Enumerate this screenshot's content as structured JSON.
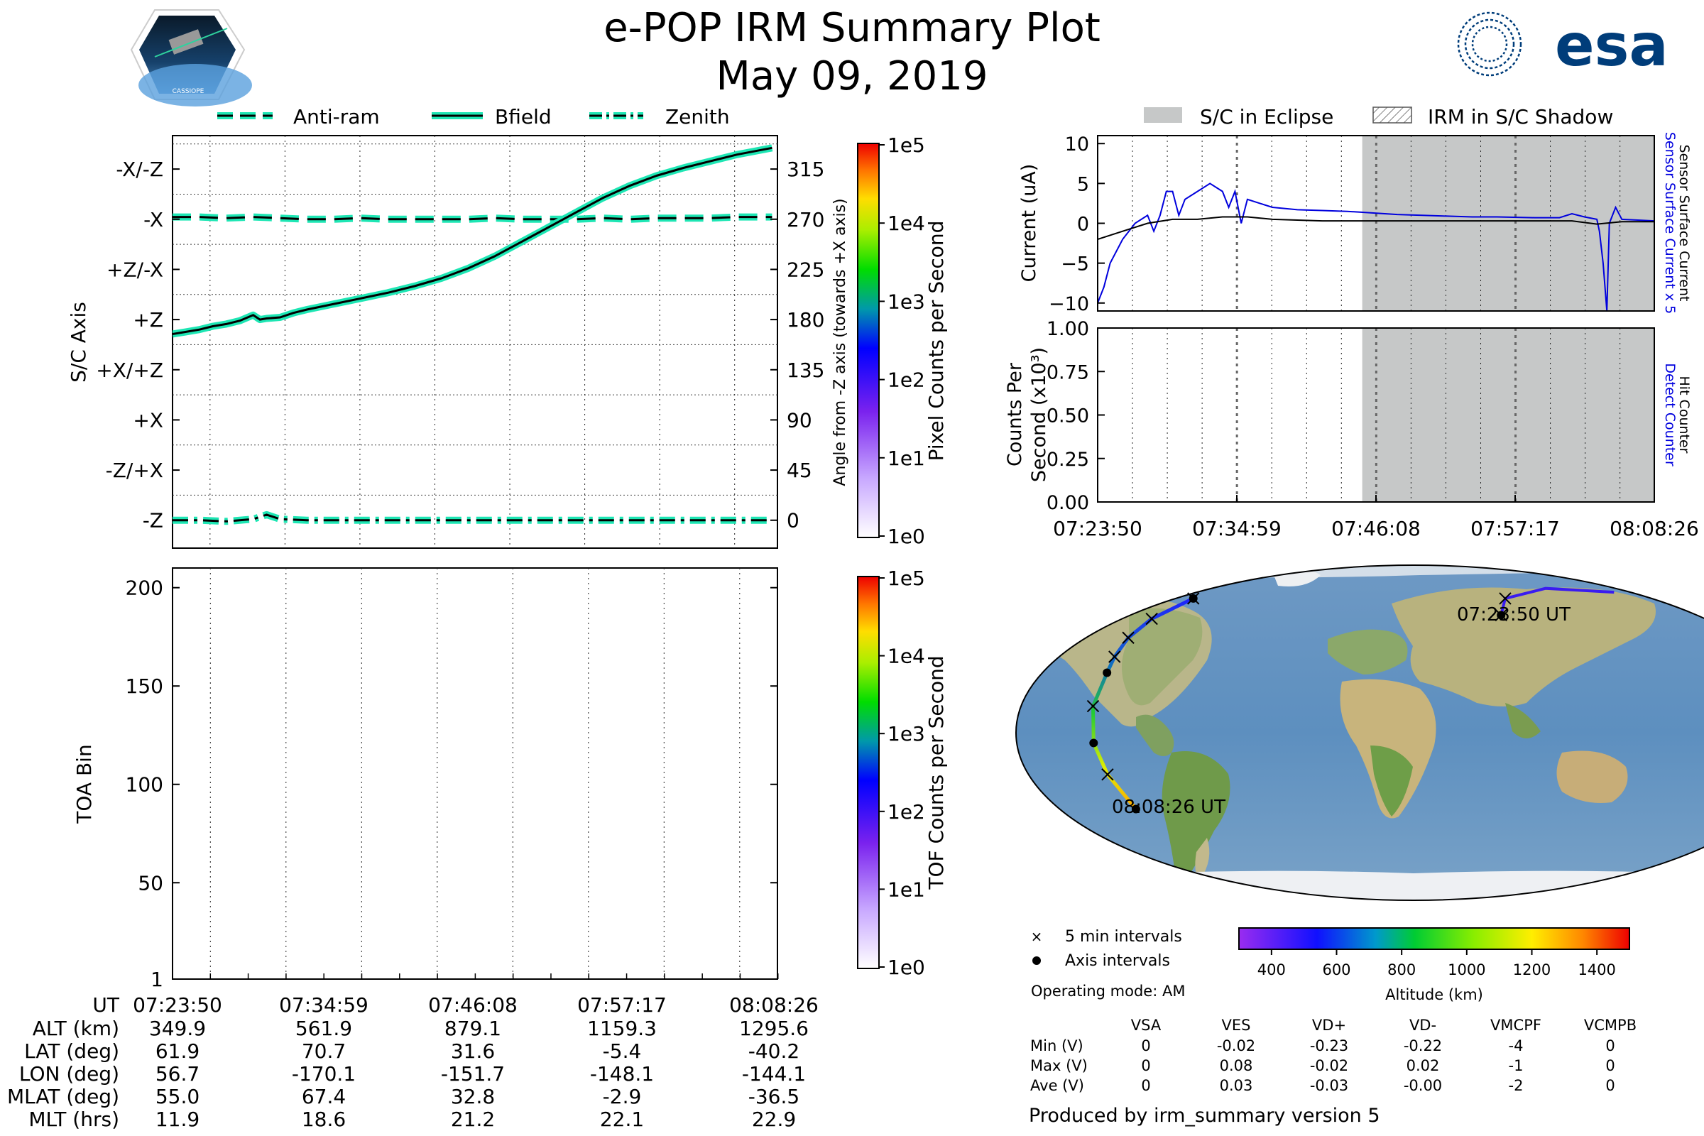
{
  "header": {
    "title": "e-POP IRM Summary Plot",
    "date": "May 09, 2019",
    "left_logo_text": "CASSIOPE",
    "right_logo_text": "esa"
  },
  "colors": {
    "trace": "#1ee6b4",
    "blue_current": "#0000dd",
    "eclipse_fill": "#c6c8c8",
    "title_blue": "#003d7a"
  },
  "time_ticks": [
    "07:23:50",
    "07:34:59",
    "07:46:08",
    "07:57:17",
    "08:08:26"
  ],
  "chart_data": [
    {
      "id": "sc-axis",
      "type": "line",
      "title": "",
      "ylabel": "S/C Axis",
      "ylabel_right": "Angle from -Z axis (towards +X axis)",
      "left_tick_labels": [
        "-X/-Z",
        "-X",
        "+Z/-X",
        "+Z",
        "+X/+Z",
        "+X",
        "-Z/+X",
        "-Z"
      ],
      "right_ticks": [
        315,
        270,
        225,
        180,
        135,
        90,
        45,
        0
      ],
      "ylim": [
        -25,
        345
      ],
      "x_minutes": [
        0,
        45
      ],
      "legend": [
        "Anti-ram",
        "Bfield",
        "Zenith"
      ],
      "series": [
        {
          "name": "Anti-ram",
          "style": "dashed",
          "x": [
            0,
            2,
            4,
            6,
            8,
            10,
            12,
            14,
            16,
            18,
            20,
            22,
            24,
            26,
            28,
            30,
            32,
            34,
            36,
            38,
            40,
            42,
            44.6
          ],
          "values": [
            272,
            272,
            271,
            272,
            271,
            270,
            270,
            271,
            270,
            270,
            270,
            270,
            271,
            270,
            270,
            270,
            271,
            270,
            271,
            271,
            271,
            272,
            272
          ]
        },
        {
          "name": "Bfield",
          "style": "solid",
          "x": [
            0,
            1,
            2,
            3,
            4,
            5,
            6,
            6.5,
            7,
            8,
            9,
            10,
            12,
            14,
            16,
            18,
            20,
            22,
            24,
            26,
            28,
            30,
            32,
            34,
            36,
            38,
            40,
            42,
            44.6
          ],
          "values": [
            167,
            169,
            171,
            174,
            176,
            179,
            184,
            180,
            181,
            182,
            186,
            189,
            194,
            199,
            204,
            210,
            217,
            226,
            237,
            250,
            263,
            276,
            289,
            300,
            309,
            316,
            322,
            328,
            334
          ]
        },
        {
          "name": "Zenith",
          "style": "dashdot",
          "x": [
            0,
            2,
            4,
            6,
            7,
            8,
            10,
            14,
            18,
            22,
            26,
            30,
            34,
            38,
            42,
            44.6
          ],
          "values": [
            0,
            0,
            -1,
            1,
            5,
            1,
            0,
            0,
            0,
            0,
            0,
            0,
            0,
            0,
            0,
            0
          ]
        }
      ],
      "colorbar": {
        "label": "Pixel Counts per Second",
        "ticks": [
          "1e5",
          "1e4",
          "1e3",
          "1e2",
          "1e1",
          "1e0"
        ]
      }
    },
    {
      "id": "toa",
      "type": "heatmap",
      "ylabel": "TOA Bin",
      "y_ticks": [
        200,
        150,
        100,
        50,
        1
      ],
      "ylim": [
        1,
        210
      ],
      "series": [],
      "colorbar": {
        "label": "TOF Counts per Second",
        "ticks": [
          "1e5",
          "1e4",
          "1e3",
          "1e2",
          "1e1",
          "1e0"
        ]
      }
    },
    {
      "id": "current",
      "type": "line",
      "ylabel": "Current (uA)",
      "y_ticks": [
        "10",
        "5",
        "0",
        "−5",
        "−10"
      ],
      "ylim": [
        -11,
        11
      ],
      "right_label_blue": "Sensor Surface Current x 5",
      "right_label_black": "Sensor Surface Current",
      "legend": [
        "S/C in Eclipse",
        "IRM in S/C Shadow"
      ],
      "eclipse_start_minutes": 21.2,
      "series": [
        {
          "name": "Sensor Surface Current x 5",
          "color": "blue",
          "x": [
            0,
            0.5,
            1,
            2,
            3,
            4,
            4.5,
            5,
            5.5,
            6,
            6.5,
            7,
            8,
            9,
            10,
            10.5,
            11,
            11.5,
            12,
            13,
            14,
            16,
            18,
            20,
            21,
            22,
            24,
            26,
            28,
            30,
            32,
            35,
            37,
            38,
            39,
            40,
            40.2,
            40.5,
            40.8,
            41,
            41.5,
            42,
            44.6
          ],
          "values": [
            -10,
            -8,
            -5,
            -2,
            0,
            1,
            -1,
            1,
            4,
            4,
            1,
            3,
            4,
            5,
            4,
            2,
            4,
            0,
            3,
            2.5,
            2,
            1.7,
            1.6,
            1.5,
            1.4,
            1.3,
            1.1,
            1,
            0.9,
            0.8,
            0.8,
            0.7,
            0.7,
            1.2,
            0.8,
            0.5,
            -1,
            -5,
            -11,
            0,
            2,
            0.5,
            0.3
          ]
        },
        {
          "name": "Sensor Surface Current",
          "color": "black",
          "x": [
            0,
            2,
            4,
            6,
            8,
            10,
            12,
            14,
            18,
            22,
            26,
            30,
            34,
            38,
            40,
            42,
            44.6
          ],
          "values": [
            -2,
            -1,
            0,
            0.5,
            0.5,
            0.8,
            0.8,
            0.5,
            0.3,
            0.3,
            0.3,
            0.3,
            0.3,
            0.3,
            -0.1,
            0.2,
            0.2
          ]
        }
      ]
    },
    {
      "id": "counts",
      "type": "line",
      "ylabel_line1": "Counts Per",
      "ylabel_line2": "Second (x10³)",
      "y_ticks": [
        "1.00",
        "0.75",
        "0.50",
        "0.25",
        "0.00"
      ],
      "ylim": [
        0,
        1
      ],
      "right_label_blue": "Detect Counter",
      "right_label_black": "Hit Counter",
      "series": [
        {
          "name": "Detect Counter",
          "x": [
            0,
            44.6
          ],
          "values": [
            0,
            0
          ]
        },
        {
          "name": "Hit Counter",
          "x": [
            0,
            44.6
          ],
          "values": [
            0,
            0
          ]
        }
      ]
    },
    {
      "id": "ground-track",
      "type": "scatter",
      "labels": [
        "07:23:50 UT",
        "08:08:26 UT"
      ],
      "track_lon": [
        56.7,
        70.7,
        120,
        170,
        -175,
        -170.1,
        -165,
        -160,
        -155,
        -151.7,
        -150,
        -148.1,
        -146,
        -144.1
      ],
      "track_lat": [
        61.9,
        70.7,
        76,
        74,
        72,
        70.7,
        60,
        50,
        40,
        31.6,
        14,
        -5.4,
        -22,
        -40.2
      ],
      "legend": [
        "5 min intervals",
        "Axis intervals"
      ],
      "colorbar": {
        "label": "Altitude (km)",
        "ticks": [
          400,
          600,
          800,
          1000,
          1200,
          1400
        ],
        "range": [
          300,
          1500
        ]
      }
    }
  ],
  "info_table": {
    "header": "UT",
    "rows": [
      {
        "label": "ALT (km)",
        "values": [
          "349.9",
          "561.9",
          "879.1",
          "1159.3",
          "1295.6"
        ]
      },
      {
        "label": "LAT (deg)",
        "values": [
          "61.9",
          "70.7",
          "31.6",
          "-5.4",
          "-40.2"
        ]
      },
      {
        "label": "LON (deg)",
        "values": [
          "56.7",
          "-170.1",
          "-151.7",
          "-148.1",
          "-144.1"
        ]
      },
      {
        "label": "MLAT (deg)",
        "values": [
          "55.0",
          "67.4",
          "32.8",
          "-2.9",
          "-36.5"
        ]
      },
      {
        "label": "MLT (hrs)",
        "values": [
          "11.9",
          "18.6",
          "21.2",
          "22.1",
          "22.9"
        ]
      }
    ]
  },
  "voltage_table": {
    "operating_mode": "Operating mode: AM",
    "columns": [
      "VSA",
      "VES",
      "VD+",
      "VD-",
      "VMCPF",
      "VCMPB"
    ],
    "rows": [
      {
        "label": "Min (V)",
        "values": [
          "0",
          "-0.02",
          "-0.23",
          "-0.22",
          "-4",
          "0"
        ]
      },
      {
        "label": "Max (V)",
        "values": [
          "0",
          "0.08",
          "-0.02",
          "0.02",
          "-1",
          "0"
        ]
      },
      {
        "label": "Ave (V)",
        "values": [
          "0",
          "0.03",
          "-0.03",
          "-0.00",
          "-2",
          "0"
        ]
      }
    ]
  },
  "footer": "Produced by irm_summary version 5"
}
